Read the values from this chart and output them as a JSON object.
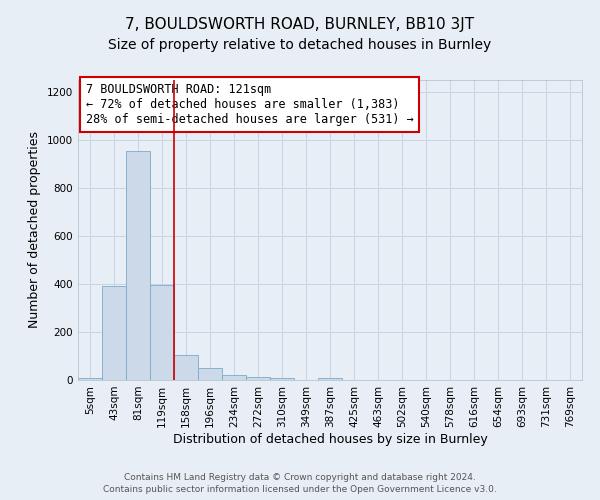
{
  "title": "7, BOULDSWORTH ROAD, BURNLEY, BB10 3JT",
  "subtitle": "Size of property relative to detached houses in Burnley",
  "xlabel": "Distribution of detached houses by size in Burnley",
  "ylabel": "Number of detached properties",
  "categories": [
    "5sqm",
    "43sqm",
    "81sqm",
    "119sqm",
    "158sqm",
    "196sqm",
    "234sqm",
    "272sqm",
    "310sqm",
    "349sqm",
    "387sqm",
    "425sqm",
    "463sqm",
    "502sqm",
    "540sqm",
    "578sqm",
    "616sqm",
    "654sqm",
    "693sqm",
    "731sqm",
    "769sqm"
  ],
  "values": [
    10,
    390,
    955,
    395,
    103,
    48,
    22,
    12,
    8,
    0,
    9,
    0,
    0,
    0,
    0,
    0,
    0,
    0,
    0,
    0,
    0
  ],
  "bar_color": "#ccd9e8",
  "bar_edge_color": "#7aaac8",
  "bar_edge_width": 0.6,
  "grid_color": "#c8d4e4",
  "bg_color": "#e8eef5",
  "red_line_index": 3,
  "annotation_text": "7 BOULDSWORTH ROAD: 121sqm\n← 72% of detached houses are smaller (1,383)\n28% of semi-detached houses are larger (531) →",
  "annotation_box_color": "#ffffff",
  "annotation_border_color": "#cc0000",
  "footer_line1": "Contains HM Land Registry data © Crown copyright and database right 2024.",
  "footer_line2": "Contains public sector information licensed under the Open Government Licence v3.0.",
  "ylim": [
    0,
    1250
  ],
  "yticks": [
    0,
    200,
    400,
    600,
    800,
    1000,
    1200
  ],
  "title_fontsize": 11,
  "subtitle_fontsize": 10,
  "xlabel_fontsize": 9,
  "ylabel_fontsize": 9,
  "tick_fontsize": 7.5,
  "annotation_fontsize": 8.5,
  "footer_fontsize": 6.5
}
